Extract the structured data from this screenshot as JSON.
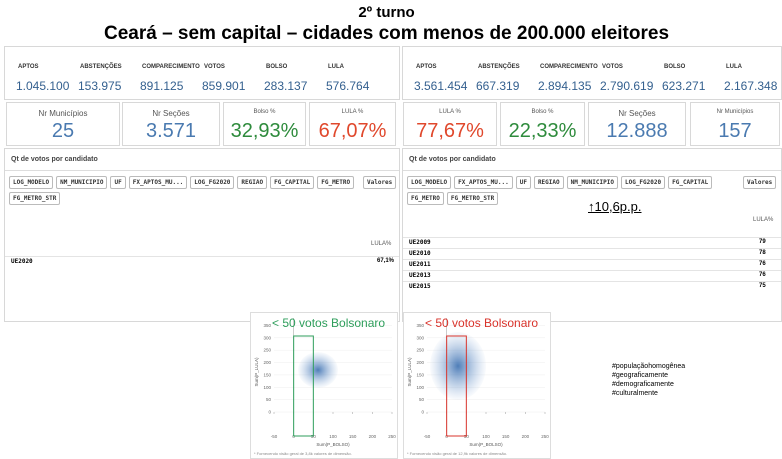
{
  "title": "2º turno",
  "subtitle": "Ceará – sem capital – cidades com menos de 200.000 eleitores",
  "panels": [
    {
      "stats": {
        "headers": [
          "APTOS",
          "ABSTENÇÕES",
          "COMPARECIMENTO",
          "VOTOS",
          "BOLSO",
          "LULA"
        ],
        "values": [
          "1.045.100",
          "153.975",
          "891.125",
          "859.901",
          "283.137",
          "576.764"
        ]
      },
      "kpis": [
        {
          "label": "Nr Municípios",
          "value": "25"
        },
        {
          "label": "Nr Seções",
          "value": "3.571"
        },
        {
          "label": "Bolso %",
          "value": "32,93%"
        },
        {
          "label": "LULA %",
          "value": "67,07%"
        }
      ],
      "table_title": "Qt de votos por candidato",
      "filters": [
        "LOG_MODELO",
        "NM_MUNICIPIO",
        "UF",
        "FX_APTOS_MU...",
        "LOG_FG2020",
        "REGIAO",
        "FG_CAPITAL",
        "FG_METRO",
        "FG_METRO_STR"
      ],
      "values_button": "Valores",
      "column": "LULA%",
      "rows": [
        [
          "UE2020",
          "67,1%"
        ]
      ]
    },
    {
      "stats": {
        "headers": [
          "APTOS",
          "ABSTENÇÕES",
          "COMPARECIMENTO",
          "VOTOS",
          "BOLSO",
          "LULA"
        ],
        "values": [
          "3.561.454",
          "667.319",
          "2.894.135",
          "2.790.619",
          "623.271",
          "2.167.348"
        ]
      },
      "kpis": [
        {
          "label": "LULA %",
          "value": "77,67%"
        },
        {
          "label": "Bolso %",
          "value": "22,33%"
        },
        {
          "label": "Nr Seções",
          "value": "12.888"
        },
        {
          "label": "Nr Municípios",
          "value": "157"
        }
      ],
      "table_title": "Qt de votos por candidato",
      "filters": [
        "LOG_MODELO",
        "FX_APTOS_MU...",
        "UF",
        "REGIAO",
        "NM_MUNICIPIO",
        "LOG_FG2020",
        "FG_CAPITAL",
        "FG_METRO",
        "FG_METRO_STR"
      ],
      "values_button": "Valores",
      "column": "LULA%",
      "rows": [
        [
          "UE2009",
          "79"
        ],
        [
          "UE2010",
          "78"
        ],
        [
          "UE2011",
          "76"
        ],
        [
          "UE2013",
          "76"
        ],
        [
          "UE2015",
          "75"
        ]
      ],
      "annotation": "↑10,6p.p."
    }
  ],
  "plots": [
    {
      "title": "< 50 votos Bolsonaro",
      "color": "#2e9e5b",
      "xlabel": "Sum(P_BOLSO)",
      "ylabel": "Sum(P_LULA)",
      "xlim": [
        -50,
        250
      ],
      "xticks": [
        -50,
        0,
        50,
        100,
        150,
        200,
        250
      ],
      "ylim": [
        0,
        380
      ],
      "yticks": [
        0,
        50,
        100,
        150,
        200,
        250,
        300,
        350
      ],
      "highlight_x": [
        0,
        50
      ],
      "footnote": "* Fornecendo visão geral de 3,8k valores de dimensão."
    },
    {
      "title": "< 50 votos Bolsonaro",
      "color": "#d9332b",
      "xlabel": "Sum(P_BOLSO)",
      "ylabel": "Sum(P_LULA)",
      "xlim": [
        -50,
        250
      ],
      "xticks": [
        -50,
        0,
        50,
        100,
        150,
        200,
        250
      ],
      "ylim": [
        0,
        380
      ],
      "yticks": [
        0,
        50,
        100,
        150,
        200,
        250,
        300,
        350
      ],
      "highlight_x": [
        0,
        50
      ],
      "footnote": "* Fornecendo visão geral de 12,9k valores de dimensão."
    }
  ],
  "hashtags": [
    "#populaçãohomogênea",
    "#geograficamente",
    "#demograficamente",
    "#culturalmente"
  ]
}
